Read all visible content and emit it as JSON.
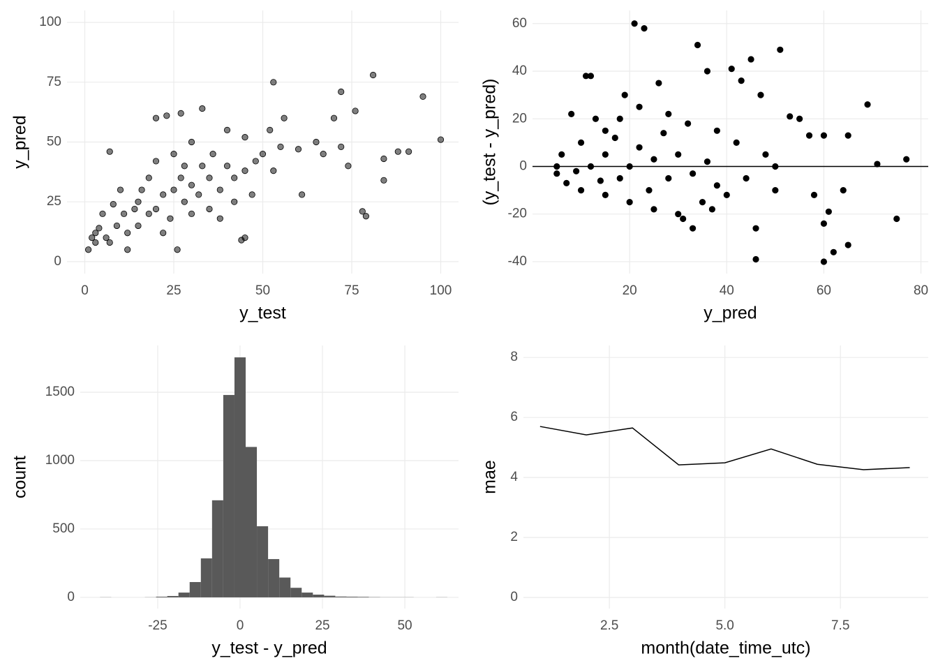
{
  "chart_data": [
    {
      "type": "scatter",
      "xlabel": "y_test",
      "ylabel": "y_pred",
      "color": "#000000",
      "alpha": 0.5,
      "outline": "#000000",
      "grid": true,
      "xlim": [
        -5,
        105
      ],
      "ylim": [
        -5,
        105
      ],
      "xticks": [
        0,
        25,
        50,
        75,
        100
      ],
      "yticks": [
        0,
        25,
        50,
        75,
        100
      ],
      "x": [
        100,
        95,
        81,
        72,
        76,
        91,
        84,
        84,
        78,
        79,
        88,
        74,
        72,
        70,
        67,
        65,
        60,
        61,
        55,
        56,
        53,
        53,
        47,
        45,
        44,
        36,
        33,
        27,
        23,
        20,
        7,
        26,
        12,
        5,
        2,
        3,
        1,
        10,
        8,
        15,
        15,
        18,
        20,
        22,
        25,
        28,
        30,
        32,
        35,
        38,
        40,
        42,
        45,
        48,
        50,
        52,
        28,
        18,
        12,
        9,
        6,
        4,
        14,
        24,
        30,
        35,
        38,
        42,
        20,
        25,
        30,
        40,
        45,
        16,
        11,
        7,
        3,
        22,
        27,
        33
      ],
      "values": [
        51,
        69,
        78,
        71,
        63,
        46,
        43,
        34,
        21,
        19,
        46,
        40,
        48,
        60,
        45,
        50,
        47,
        28,
        48,
        60,
        75,
        38,
        28,
        10,
        9,
        45,
        64,
        62,
        61,
        60,
        46,
        5,
        5,
        20,
        10,
        8,
        5,
        30,
        24,
        15,
        25,
        20,
        22,
        28,
        30,
        25,
        32,
        28,
        35,
        30,
        40,
        35,
        38,
        42,
        45,
        55,
        40,
        35,
        12,
        15,
        10,
        14,
        22,
        18,
        20,
        22,
        18,
        25,
        42,
        45,
        50,
        55,
        52,
        30,
        20,
        8,
        12,
        12,
        35,
        40
      ]
    },
    {
      "type": "scatter",
      "xlabel": "y_pred",
      "ylabel": "(y_test - y_pred)",
      "color": "#000000",
      "alpha": 1,
      "outline": "#000000",
      "grid": true,
      "hline": 0,
      "xlim": [
        0,
        81.5
      ],
      "ylim": [
        -45,
        65.5
      ],
      "xticks": [
        20,
        40,
        60,
        80
      ],
      "yticks": [
        -40,
        -20,
        0,
        20,
        40,
        60
      ],
      "x": [
        21,
        23,
        34,
        51,
        45,
        41,
        36,
        43,
        47,
        69,
        77,
        71,
        60,
        65,
        57,
        53,
        55,
        50,
        60,
        61,
        62,
        60,
        65,
        64,
        75,
        58,
        46,
        46,
        33,
        11,
        12,
        8,
        6,
        5,
        5,
        7,
        10,
        15,
        20,
        25,
        30,
        35,
        40,
        15,
        18,
        22,
        28,
        32,
        38,
        42,
        10,
        12,
        15,
        18,
        20,
        22,
        25,
        28,
        30,
        33,
        36,
        38,
        14,
        17,
        24,
        27,
        19,
        26,
        44,
        48,
        50,
        9,
        13,
        31,
        37
      ],
      "values": [
        60,
        58,
        51,
        49,
        45,
        41,
        40,
        36,
        30,
        26,
        3,
        1,
        13,
        13,
        13,
        21,
        20,
        -10,
        -24,
        -19,
        -36,
        -40,
        -33,
        -10,
        -22,
        -12,
        -26,
        -39,
        -26,
        38,
        38,
        22,
        5,
        0,
        -3,
        -7,
        -10,
        -12,
        -15,
        -18,
        -20,
        -15,
        -12,
        15,
        20,
        25,
        22,
        18,
        15,
        10,
        10,
        0,
        5,
        -5,
        0,
        8,
        3,
        -5,
        5,
        -3,
        2,
        -8,
        -6,
        12,
        -10,
        14,
        30,
        35,
        -5,
        5,
        0,
        -2,
        20,
        -22,
        -18
      ]
    },
    {
      "type": "histogram",
      "xlabel": "y_test - y_pred",
      "ylabel": "count",
      "color": "#595959",
      "grid": true,
      "xlim": [
        -48.5,
        66.3
      ],
      "ylim": [
        -82,
        1842
      ],
      "xticks": [
        -25,
        0,
        25,
        50
      ],
      "yticks": [
        0,
        500,
        1000,
        1500
      ],
      "bins": [
        -42.5,
        -39.1,
        -35.7,
        -32.3,
        -28.9,
        -25.5,
        -22.1,
        -18.7,
        -15.3,
        -11.9,
        -8.5,
        -5.1,
        -1.7,
        1.7,
        5.1,
        8.5,
        11.9,
        15.3,
        18.7,
        22.1,
        25.5,
        28.9,
        32.3,
        35.7,
        39.1,
        42.5,
        45.9,
        49.3,
        52.7,
        56.1,
        59.5,
        62.9
      ],
      "values": [
        1,
        0,
        0,
        0,
        1,
        5,
        10,
        35,
        112,
        285,
        710,
        1480,
        1755,
        1100,
        520,
        280,
        145,
        70,
        35,
        20,
        12,
        6,
        5,
        4,
        2,
        1,
        1,
        1,
        0,
        0,
        1
      ]
    },
    {
      "type": "line",
      "xlabel": "month(date_time_utc)",
      "ylabel": "mae",
      "color": "#000000",
      "grid": true,
      "xlim": [
        0.64,
        9.4
      ],
      "ylim": [
        -0.37,
        8.4
      ],
      "xticks": [
        2.5,
        {
          "value": 5,
          "label": "5.0"
        },
        7.5
      ],
      "yticks": [
        0,
        2,
        4,
        6,
        8
      ],
      "x": [
        1,
        2,
        3,
        4,
        5,
        6,
        7,
        8,
        9
      ],
      "values": [
        5.7,
        5.42,
        5.65,
        4.42,
        4.49,
        4.95,
        4.44,
        4.26,
        4.33
      ]
    }
  ]
}
